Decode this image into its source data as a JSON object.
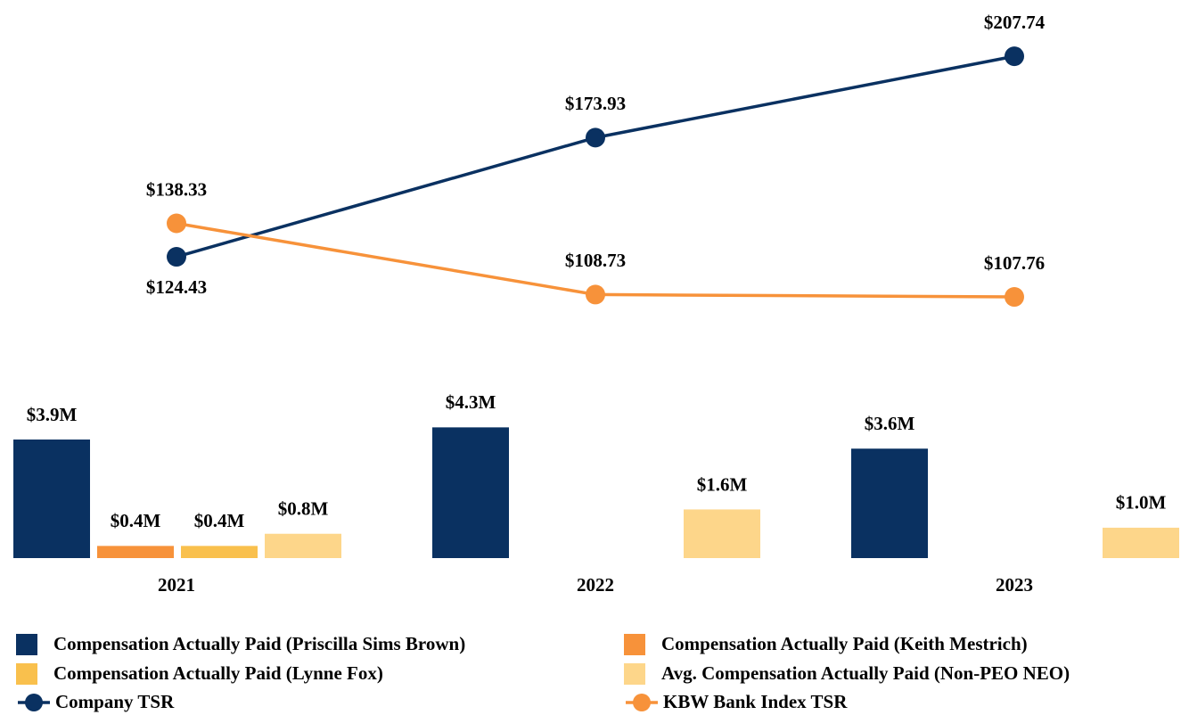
{
  "chart_data": {
    "type": "bar",
    "categories": [
      "2021",
      "2022",
      "2023"
    ],
    "series": [
      {
        "name": "Compensation Actually Paid (Priscilla Sims Brown)",
        "color": "#0a3161",
        "values": [
          3.9,
          4.3,
          3.6
        ],
        "value_labels": [
          "$3.9M",
          "$4.3M",
          "$3.6M"
        ]
      },
      {
        "name": "Compensation Actually Paid (Keith Mestrich)",
        "color": "#f7923a",
        "values": [
          0.4,
          null,
          null
        ],
        "value_labels": [
          "$0.4M",
          null,
          null
        ]
      },
      {
        "name": "Compensation Actually Paid (Lynne Fox)",
        "color": "#f9c04d",
        "values": [
          0.4,
          null,
          null
        ],
        "value_labels": [
          "$0.4M",
          null,
          null
        ]
      },
      {
        "name": "Avg. Compensation Actually Paid (Non-PEO NEO)",
        "color": "#fdd68a",
        "values": [
          0.8,
          1.6,
          1.0
        ],
        "value_labels": [
          "$0.8M",
          "$1.6M",
          "$1.0M"
        ]
      },
      {
        "name": "Company TSR",
        "type": "line",
        "color": "#0a3161",
        "values": [
          124.43,
          173.93,
          207.74
        ],
        "value_labels": [
          "$124.43",
          "$173.93",
          "$207.74"
        ]
      },
      {
        "name": "KBW Bank Index TSR",
        "type": "line",
        "color": "#f7923a",
        "values": [
          138.33,
          108.73,
          107.76
        ],
        "value_labels": [
          "$138.33",
          "$108.73",
          "$107.76"
        ]
      }
    ]
  }
}
